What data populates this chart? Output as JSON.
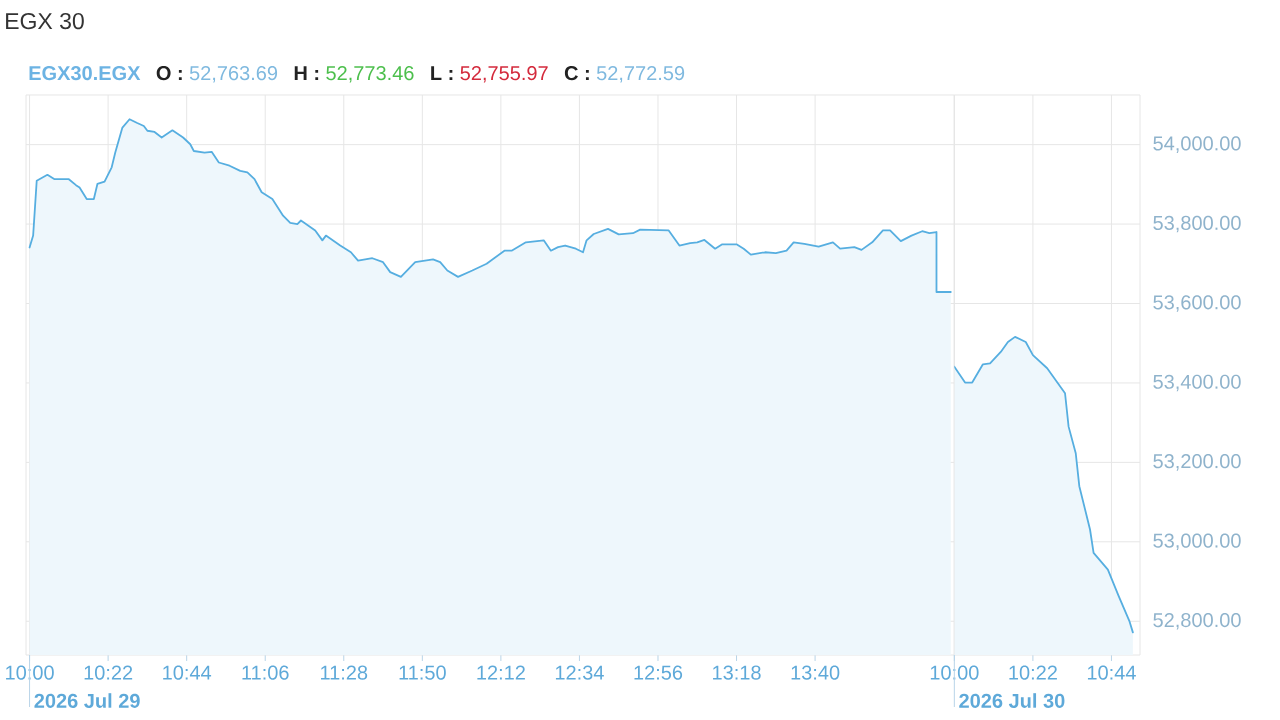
{
  "chart_data": [
    {
      "type": "area",
      "title": "EGX 30",
      "annotations": [
        "EGX30.EGX",
        "O :",
        "52,763.69",
        "H :",
        "52,773.46",
        "L :",
        "52,755.97",
        "C :",
        "52,772.59",
        "2026 Jul 29"
      ],
      "x": [
        "2026-07-29T10:00",
        "2026-07-29T10:01",
        "2026-07-29T10:02",
        "2026-07-29T10:05",
        "2026-07-29T10:07",
        "2026-07-29T10:11",
        "2026-07-29T10:13",
        "2026-07-29T10:14",
        "2026-07-29T10:16",
        "2026-07-29T10:18",
        "2026-07-29T10:19",
        "2026-07-29T10:21",
        "2026-07-29T10:23",
        "2026-07-29T10:24",
        "2026-07-29T10:26",
        "2026-07-29T10:28",
        "2026-07-29T10:30",
        "2026-07-29T10:32",
        "2026-07-29T10:33",
        "2026-07-29T10:35",
        "2026-07-29T10:37",
        "2026-07-29T10:40",
        "2026-07-29T10:43",
        "2026-07-29T10:45",
        "2026-07-29T10:46",
        "2026-07-29T10:49",
        "2026-07-29T10:51",
        "2026-07-29T10:53",
        "2026-07-29T10:56",
        "2026-07-29T10:59",
        "2026-07-29T11:01",
        "2026-07-29T11:03",
        "2026-07-29T11:05",
        "2026-07-29T11:08",
        "2026-07-29T11:11",
        "2026-07-29T11:13",
        "2026-07-29T11:15",
        "2026-07-29T11:16",
        "2026-07-29T11:20",
        "2026-07-29T11:22",
        "2026-07-29T11:23",
        "2026-07-29T11:27",
        "2026-07-29T11:30",
        "2026-07-29T11:32",
        "2026-07-29T11:36",
        "2026-07-29T11:39",
        "2026-07-29T11:41",
        "2026-07-29T11:44",
        "2026-07-29T11:48",
        "2026-07-29T11:53",
        "2026-07-29T11:55",
        "2026-07-29T11:57",
        "2026-07-29T12:00",
        "2026-07-29T12:04",
        "2026-07-29T12:08",
        "2026-07-29T12:13",
        "2026-07-29T12:15",
        "2026-07-29T12:19",
        "2026-07-29T12:24",
        "2026-07-29T12:26",
        "2026-07-29T12:28",
        "2026-07-29T12:30",
        "2026-07-29T12:33",
        "2026-07-29T12:35",
        "2026-07-29T12:36",
        "2026-07-29T12:38",
        "2026-07-29T12:42",
        "2026-07-29T12:45",
        "2026-07-29T12:49",
        "2026-07-29T12:51",
        "2026-07-29T12:59",
        "2026-07-29T13:02",
        "2026-07-29T13:05",
        "2026-07-29T13:07",
        "2026-07-29T13:09",
        "2026-07-29T13:12",
        "2026-07-29T13:14",
        "2026-07-29T13:18",
        "2026-07-29T13:20",
        "2026-07-29T13:22",
        "2026-07-29T13:26",
        "2026-07-29T13:29",
        "2026-07-29T13:32",
        "2026-07-29T13:34",
        "2026-07-29T13:37",
        "2026-07-29T13:41",
        "2026-07-29T13:45",
        "2026-07-29T13:47",
        "2026-07-29T13:51",
        "2026-07-29T13:53",
        "2026-07-29T13:56",
        "2026-07-29T13:59",
        "2026-07-29T14:01",
        "2026-07-29T14:04",
        "2026-07-29T14:07",
        "2026-07-29T14:10",
        "2026-07-29T14:12",
        "2026-07-29T14:14",
        "2026-07-29T14:14",
        "2026-07-29T14:18"
      ],
      "values": [
        53741,
        53771,
        53909,
        53924,
        53913,
        53913,
        53898,
        53892,
        53863,
        53863,
        53901,
        53907,
        53943,
        53980,
        54043,
        54064,
        54055,
        54047,
        54035,
        54032,
        54018,
        54036,
        54018,
        54001,
        53984,
        53980,
        53982,
        53955,
        53947,
        53934,
        53930,
        53913,
        53880,
        53863,
        53821,
        53803,
        53800,
        53809,
        53784,
        53759,
        53771,
        53746,
        53729,
        53708,
        53714,
        53704,
        53679,
        53667,
        53704,
        53711,
        53704,
        53683,
        53667,
        53683,
        53700,
        53733,
        53733,
        53754,
        53759,
        53733,
        53742,
        53746,
        53738,
        53729,
        53759,
        53775,
        53788,
        53774,
        53777,
        53786,
        53784,
        53746,
        53752,
        53754,
        53760,
        53738,
        53749,
        53749,
        53738,
        53723,
        53729,
        53727,
        53733,
        53754,
        53750,
        53743,
        53754,
        53738,
        53742,
        53735,
        53754,
        53784,
        53784,
        53757,
        53771,
        53782,
        53777,
        53780,
        53629,
        53629
      ],
      "color": "#56aee0",
      "xlim": [
        "2026-07-29T09:59",
        "2026-07-29T14:19"
      ],
      "xticks": [
        {
          "value": "2026-07-29T10:00",
          "label": "10:00"
        },
        {
          "value": "2026-07-29T10:22",
          "label": "10:22"
        },
        {
          "value": "2026-07-29T10:44",
          "label": "10:44"
        },
        {
          "value": "2026-07-29T11:06",
          "label": "11:06"
        },
        {
          "value": "2026-07-29T11:28",
          "label": "11:28"
        },
        {
          "value": "2026-07-29T11:50",
          "label": "11:50"
        },
        {
          "value": "2026-07-29T12:12",
          "label": "12:12"
        },
        {
          "value": "2026-07-29T12:34",
          "label": "12:34"
        },
        {
          "value": "2026-07-29T12:56",
          "label": "12:56"
        },
        {
          "value": "2026-07-29T13:18",
          "label": "13:18"
        },
        {
          "value": "2026-07-29T13:40",
          "label": "13:40"
        }
      ],
      "ylim": [
        52715,
        54125
      ],
      "yticks": [
        52800,
        53000,
        53200,
        53400,
        53600,
        53800,
        54000
      ],
      "grid": true,
      "tick_labels": "x"
    },
    {
      "type": "area",
      "annotations": [
        "2026 Jul 30"
      ],
      "x": [
        "2026-07-30T10:00",
        "2026-07-30T10:03",
        "2026-07-30T10:05",
        "2026-07-30T10:08",
        "2026-07-30T10:10",
        "2026-07-30T10:13",
        "2026-07-30T10:15",
        "2026-07-30T10:17",
        "2026-07-30T10:20",
        "2026-07-30T10:22",
        "2026-07-30T10:26",
        "2026-07-30T10:28",
        "2026-07-30T10:31",
        "2026-07-30T10:32",
        "2026-07-30T10:34",
        "2026-07-30T10:35",
        "2026-07-30T10:38",
        "2026-07-30T10:39",
        "2026-07-30T10:43",
        "2026-07-30T10:46",
        "2026-07-30T10:49",
        "2026-07-30T10:50"
      ],
      "values": [
        53441,
        53401,
        53401,
        53447,
        53449,
        53478,
        53503,
        53516,
        53503,
        53470,
        53437,
        53412,
        53374,
        53290,
        53223,
        53140,
        53031,
        52972,
        52930,
        52864,
        52801,
        52772
      ],
      "color": "#56aee0",
      "xlim": [
        "2026-07-30T10:00",
        "2026-07-30T10:52"
      ],
      "xticks": [
        {
          "value": "2026-07-30T10:00",
          "label": "10:00"
        },
        {
          "value": "2026-07-30T10:22",
          "label": "10:22"
        },
        {
          "value": "2026-07-30T10:44",
          "label": "10:44"
        }
      ],
      "ylim": [
        52715,
        54125
      ],
      "yticks": [
        {
          "value": 52800,
          "label": "52,800.00"
        },
        {
          "value": 53000,
          "label": "53,000.00"
        },
        {
          "value": 53200,
          "label": "53,200.00"
        },
        {
          "value": 53400,
          "label": "53,400.00"
        },
        {
          "value": 53600,
          "label": "53,600.00"
        },
        {
          "value": 53800,
          "label": "53,800.00"
        },
        {
          "value": 54000,
          "label": "54,000.00"
        }
      ],
      "grid": true
    }
  ]
}
